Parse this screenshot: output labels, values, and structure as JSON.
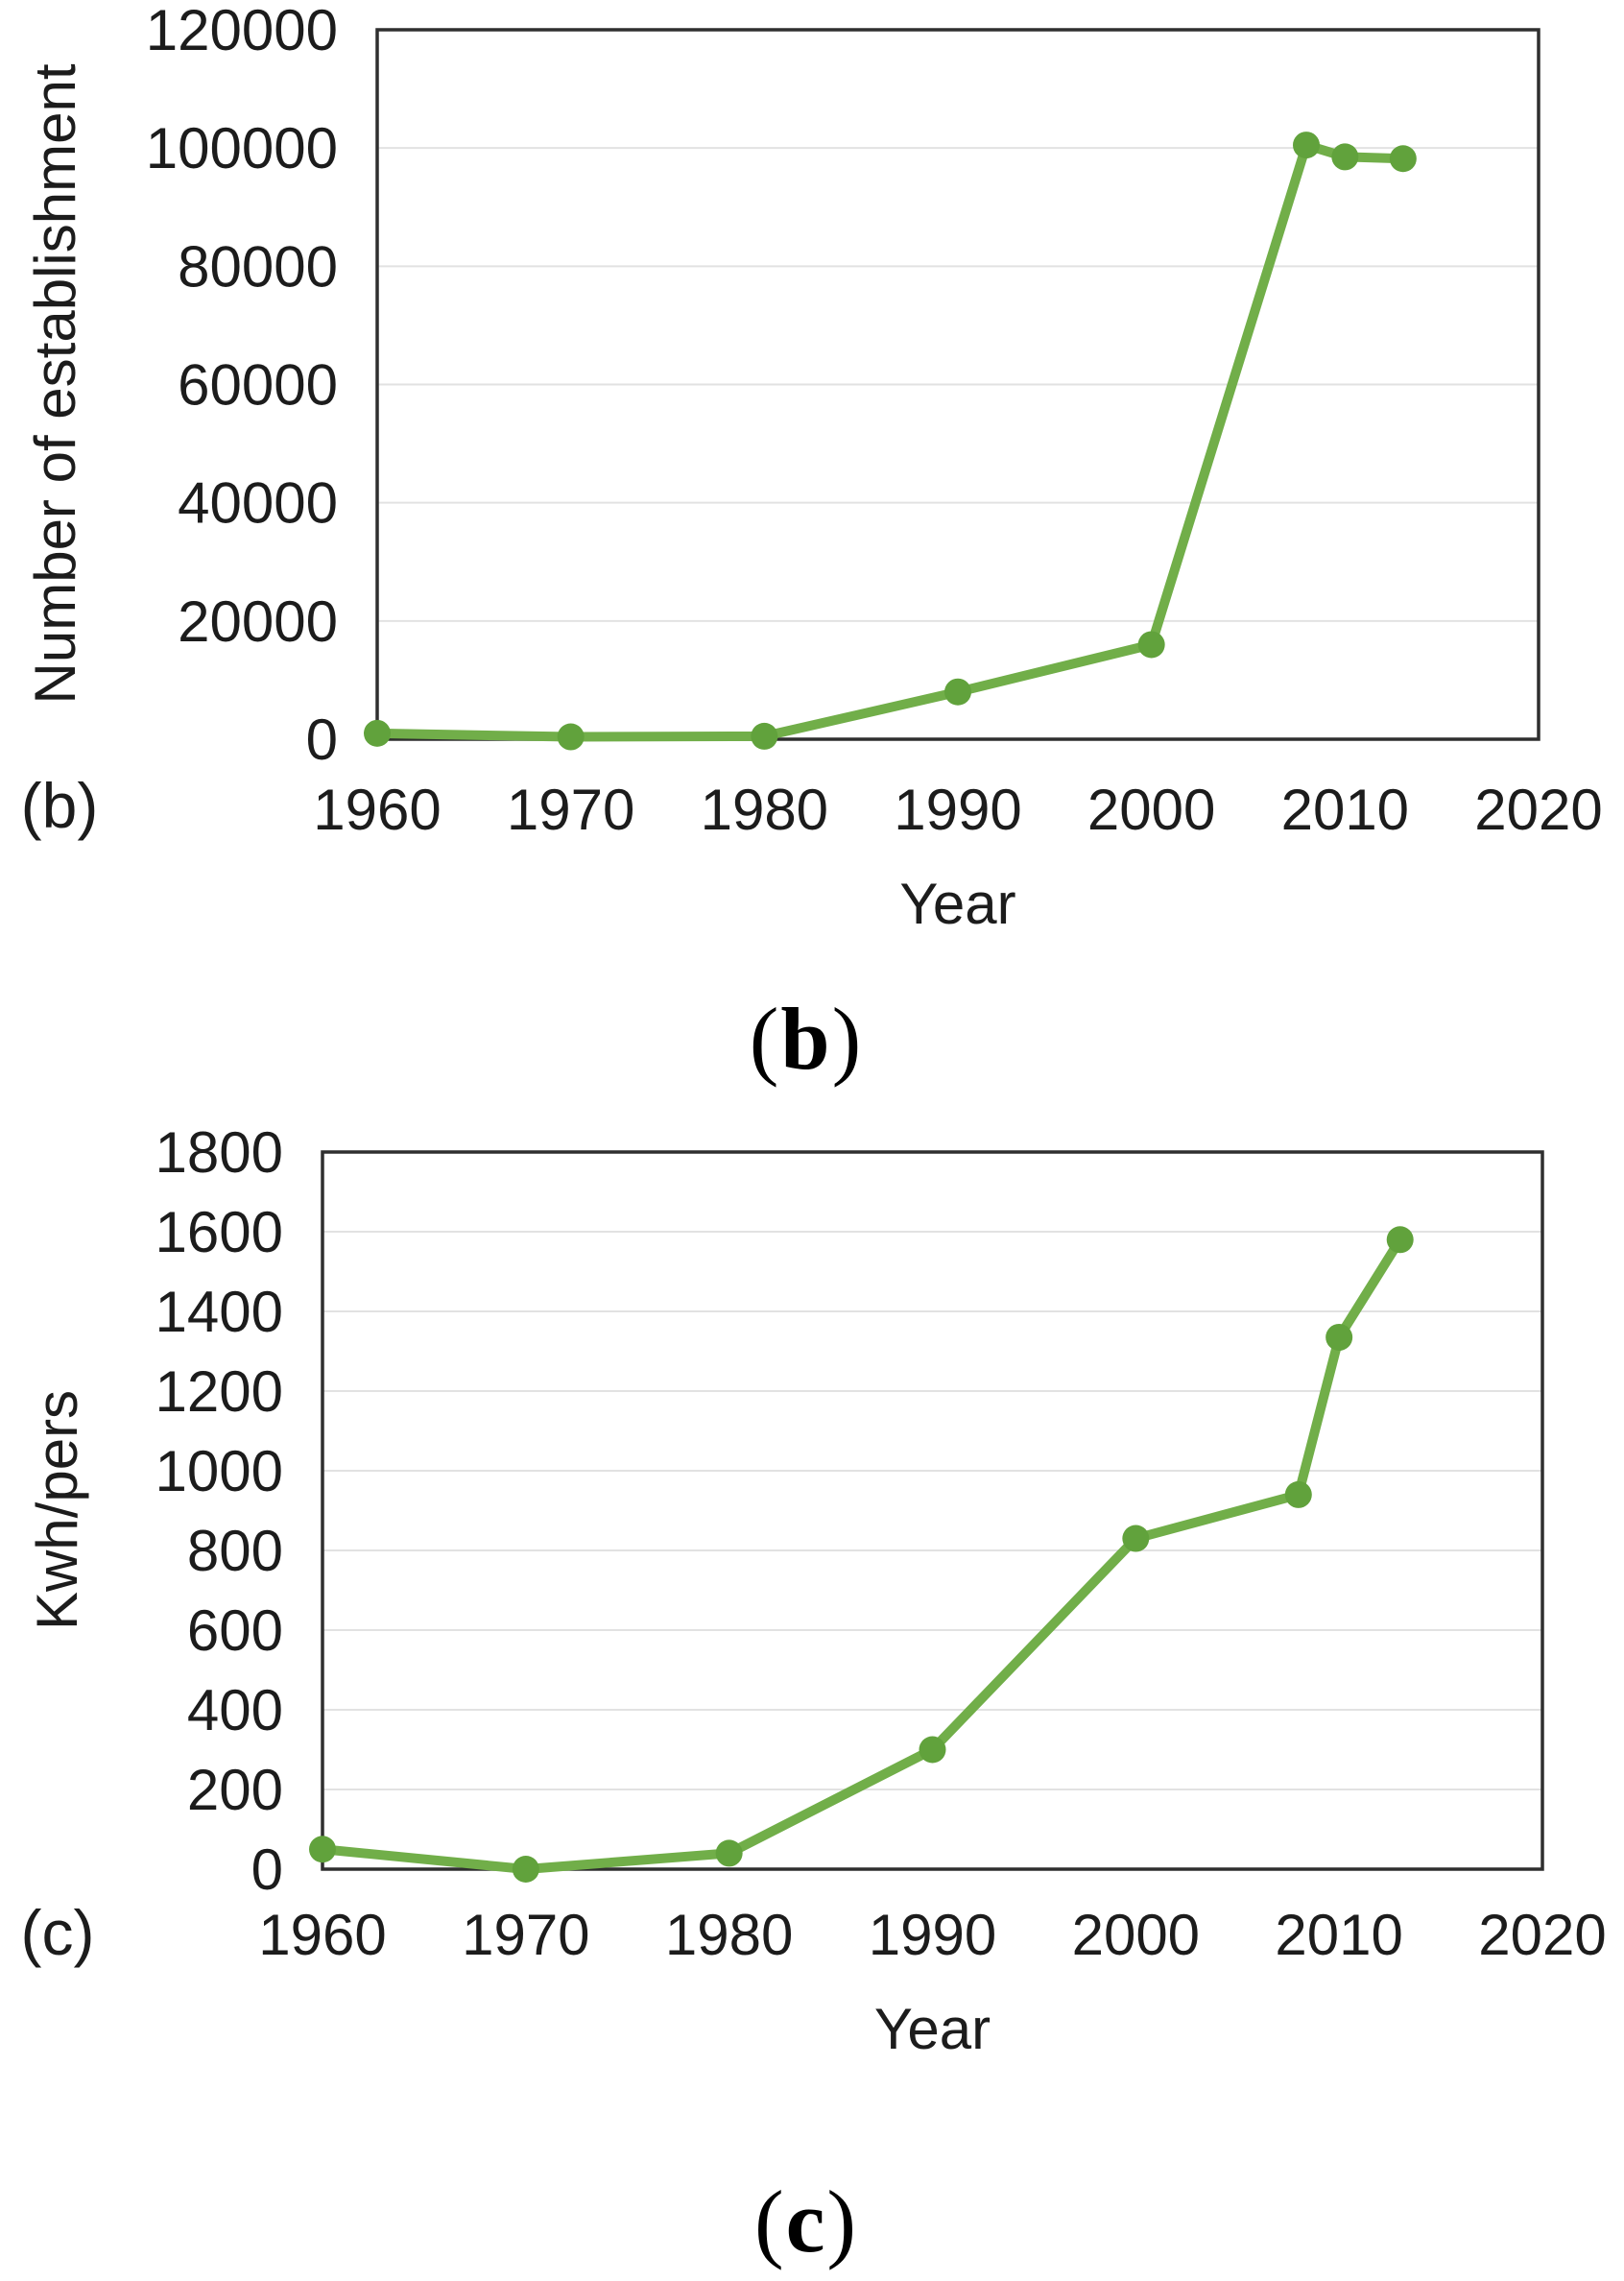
{
  "figure": {
    "background": "#ffffff",
    "text_color": "#1c1c1c",
    "line_color": "#71ae49",
    "marker_color": "#61a23c",
    "frame_color": "#2f2f2f",
    "gridline_color": "#e2e2e2"
  },
  "chart_data": [
    {
      "id": "b",
      "type": "line",
      "xlabel": "Year",
      "ylabel": "Number of establishment",
      "xlim": [
        1960,
        2020
      ],
      "ylim": [
        0,
        120000
      ],
      "xticks": [
        1960,
        1970,
        1980,
        1990,
        2000,
        2010,
        2020
      ],
      "yticks": [
        0,
        20000,
        40000,
        60000,
        80000,
        100000,
        120000
      ],
      "grid": "horizontal",
      "legend": "none",
      "series": [
        {
          "name": "Number of establishment",
          "x": [
            1960,
            1970,
            1980,
            1990,
            2000,
            2008,
            2010,
            2013
          ],
          "y": [
            1000,
            400,
            500,
            8000,
            16000,
            100500,
            98500,
            98200
          ]
        }
      ],
      "side_label": "(b)",
      "caption": {
        "open": "(",
        "letter": "b",
        "close": ")"
      }
    },
    {
      "id": "c",
      "type": "line",
      "xlabel": "Year",
      "ylabel": "Kwh/pers",
      "xlim": [
        1960,
        2020
      ],
      "ylim": [
        0,
        1800
      ],
      "xticks": [
        1960,
        1970,
        1980,
        1990,
        2000,
        2010,
        2020
      ],
      "yticks": [
        0,
        200,
        400,
        600,
        800,
        1000,
        1200,
        1400,
        1600,
        1800
      ],
      "grid": "horizontal",
      "legend": "none",
      "series": [
        {
          "name": "Kwh/pers",
          "x": [
            1960,
            1970,
            1980,
            1990,
            2000,
            2008,
            2010,
            2013
          ],
          "y": [
            50,
            0,
            40,
            300,
            830,
            940,
            1335,
            1580
          ]
        }
      ],
      "side_label": "(c)",
      "caption": {
        "open": "(",
        "letter": "c",
        "close": ")"
      }
    }
  ]
}
